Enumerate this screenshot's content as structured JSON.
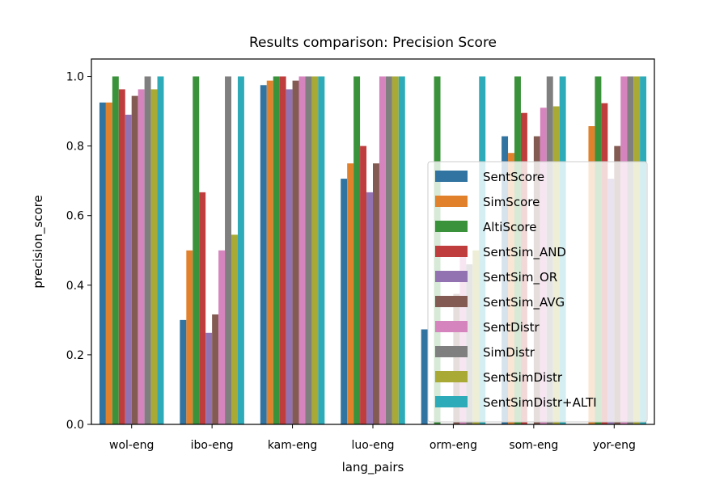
{
  "chart_data": {
    "type": "bar",
    "title": "Results comparison: Precision Score",
    "xlabel": "lang_pairs",
    "ylabel": "precision_score",
    "ylim": [
      0,
      1.05
    ],
    "yticks": [
      "0.0",
      "0.2",
      "0.4",
      "0.6",
      "0.8",
      "1.0"
    ],
    "ytick_values": [
      0,
      0.2,
      0.4,
      0.6,
      0.8,
      1.0
    ],
    "categories": [
      "wol-eng",
      "ibo-eng",
      "kam-eng",
      "luo-eng",
      "orm-eng",
      "som-eng",
      "yor-eng"
    ],
    "legend_position": "center-right",
    "series": [
      {
        "name": "SentScore",
        "color": "#3274a1",
        "values": [
          0.925,
          0.3,
          0.975,
          0.706,
          0.273,
          0.828,
          0.0
        ]
      },
      {
        "name": "SimScore",
        "color": "#e1812c",
        "values": [
          0.925,
          0.5,
          0.988,
          0.75,
          0.0,
          0.78,
          0.857
        ]
      },
      {
        "name": "AltiScore",
        "color": "#3a923a",
        "values": [
          1.0,
          1.0,
          1.0,
          1.0,
          1.0,
          1.0,
          1.0
        ]
      },
      {
        "name": "SentSim_AND",
        "color": "#c03d3e",
        "values": [
          0.963,
          0.667,
          1.0,
          0.8,
          0.0,
          0.895,
          0.923
        ]
      },
      {
        "name": "SentSim_OR",
        "color": "#9372b2",
        "values": [
          0.89,
          0.263,
          0.963,
          0.667,
          0.0,
          0.0,
          0.706
        ]
      },
      {
        "name": "SentSim_AVG",
        "color": "#845b53",
        "values": [
          0.944,
          0.316,
          0.988,
          0.75,
          0.375,
          0.828,
          0.8
        ]
      },
      {
        "name": "SentDistr",
        "color": "#d684bd",
        "values": [
          0.963,
          0.5,
          1.0,
          1.0,
          0.5,
          0.91,
          1.0
        ]
      },
      {
        "name": "SimDistr",
        "color": "#7f7f7f",
        "values": [
          1.0,
          1.0,
          1.0,
          1.0,
          0.46,
          1.0,
          1.0
        ]
      },
      {
        "name": "SentSimDistr",
        "color": "#a9aa35",
        "values": [
          0.963,
          0.545,
          1.0,
          1.0,
          0.5,
          0.914,
          1.0
        ]
      },
      {
        "name": "SentSimDistr+ALTI",
        "color": "#2eabb8",
        "values": [
          1.0,
          1.0,
          1.0,
          1.0,
          1.0,
          1.0,
          1.0
        ]
      }
    ]
  }
}
